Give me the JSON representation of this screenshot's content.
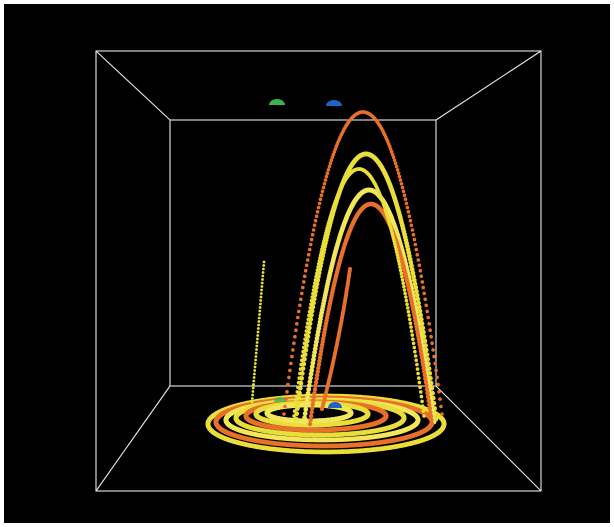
{
  "scene": {
    "background_color": "#000000",
    "box_edge_color": "#e8e8e8",
    "colors": {
      "orange": "#e8702a",
      "yellow": "#e9de3a",
      "yellow_light": "#f2e65a",
      "green": "#3ab54a",
      "blue": "#1e63c6"
    },
    "markers": [
      {
        "name": "green-hemisphere-marker",
        "color": "green"
      },
      {
        "name": "blue-hemisphere-marker-top",
        "color": "blue"
      },
      {
        "name": "blue-hemisphere-marker-bottom",
        "color": "blue"
      }
    ]
  }
}
